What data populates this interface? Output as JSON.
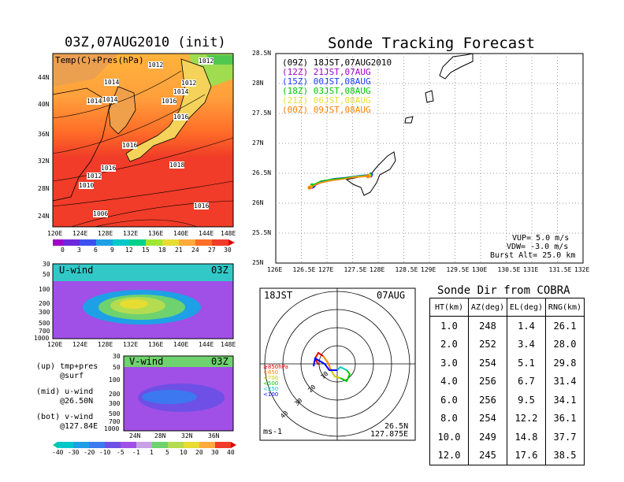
{
  "map_panel": {
    "title": "03Z,07AUG2010 (init)",
    "subtitle": "Temp(C)+Pres(hPa)",
    "lat_labels": [
      "44N",
      "40N",
      "36N",
      "32N",
      "28N",
      "24N"
    ],
    "lon_labels": [
      "120E",
      "124E",
      "128E",
      "132E",
      "136E",
      "140E",
      "144E",
      "148E"
    ],
    "isobar_labels": [
      "1012",
      "1012",
      "1014",
      "1014",
      "1012",
      "1014",
      "1014",
      "1016",
      "1016",
      "1016",
      "1016",
      "1018",
      "1012",
      "1010",
      "1006",
      "1016"
    ],
    "colorbar_labels": [
      "0",
      "3",
      "6",
      "9",
      "12",
      "15",
      "18",
      "21",
      "24",
      "27",
      "30"
    ]
  },
  "uwind_panel": {
    "label": "U-wind",
    "time": "03Z",
    "pres_labels": [
      "30",
      "50",
      "100",
      "200",
      "300",
      "500",
      "700",
      "1000"
    ],
    "lon_labels": [
      "120E",
      "124E",
      "128E",
      "132E",
      "136E",
      "140E",
      "144E",
      "148E"
    ]
  },
  "vwind_panel": {
    "label": "V-wind",
    "time": "03Z",
    "pres_labels": [
      "30",
      "50",
      "100",
      "200",
      "300",
      "500",
      "700",
      "1000"
    ],
    "lat_labels": [
      "24N",
      "28N",
      "32N",
      "36N"
    ]
  },
  "legend_text": {
    "up": "(up) tmp+pres",
    "up2": "@surf",
    "mid": "(mid) u-wind",
    "mid2": "@26.50N",
    "bot": "(bot) v-wind",
    "bot2": "@127.84E"
  },
  "wind_colorbar_labels": [
    "-40",
    "-30",
    "-20",
    "-10",
    "-5",
    "-1",
    "1",
    "5",
    "10",
    "20",
    "30",
    "40"
  ],
  "track_panel": {
    "title": "Sonde Tracking Forecast",
    "legend": [
      {
        "code": "(09Z)",
        "time": "18JST,07AUG2010",
        "color": "#000000"
      },
      {
        "code": "(12Z)",
        "time": "21JST,07AUG",
        "color": "#a000c8"
      },
      {
        "code": "(15Z)",
        "time": "00JST,08AUG",
        "color": "#1e3cff"
      },
      {
        "code": "(18Z)",
        "time": "03JST,08AUG",
        "color": "#00c800"
      },
      {
        "code": "(21Z)",
        "time": "06JST,08AUG",
        "color": "#e6dc32"
      },
      {
        "code": "(00Z)",
        "time": "09JST,08AUG",
        "color": "#ff8200"
      }
    ],
    "params": [
      "VUP= 5.0 m/s",
      "VDW= -3.0 m/s",
      "Burst Alt= 25.0 km"
    ]
  },
  "hodo_panel": {
    "time_label": "18JST",
    "date_label": "07AUG",
    "ring_labels": [
      "10",
      "20",
      "30",
      "40"
    ],
    "unit": "ms-1",
    "loc_lat": "26.5N",
    "loc_lon": "127.875E",
    "pres_legend": [
      {
        "text": "≥850hPa",
        "color": "#e60000"
      },
      {
        "text": "<850",
        "color": "#ff8200"
      },
      {
        "text": "<700",
        "color": "#c8c800"
      },
      {
        "text": "<500",
        "color": "#00c800"
      },
      {
        "text": "<250",
        "color": "#00c8c8"
      },
      {
        "text": "<100",
        "color": "#0000ff"
      }
    ]
  },
  "dir_table": {
    "title": "Sonde Dir from COBRA",
    "headers": [
      "HT(km)",
      "AZ(deg)",
      "EL(deg)",
      "RNG(km)"
    ],
    "rows": [
      [
        "1.0",
        "248",
        "1.4",
        "26.1"
      ],
      [
        "2.0",
        "252",
        "3.4",
        "28.0"
      ],
      [
        "3.0",
        "254",
        "5.1",
        "29.8"
      ],
      [
        "4.0",
        "256",
        "6.7",
        "31.4"
      ],
      [
        "6.0",
        "256",
        "9.5",
        "34.1"
      ],
      [
        "8.0",
        "254",
        "12.2",
        "36.1"
      ],
      [
        "10.0",
        "249",
        "14.8",
        "37.7"
      ],
      [
        "12.0",
        "245",
        "17.6",
        "38.5"
      ]
    ]
  },
  "chart_data": {
    "type": "line",
    "title": "Sonde Tracking Forecast",
    "xlabel": "",
    "ylabel": "",
    "xlim": [
      126,
      132
    ],
    "ylim": [
      25,
      28.5
    ],
    "x_ticks": [
      "126E",
      "126.5E",
      "127E",
      "127.5E",
      "128E",
      "128.5E",
      "129E",
      "129.5E",
      "130E",
      "130.5E",
      "131E",
      "131.5E",
      "132E"
    ],
    "y_ticks": [
      "25N",
      "25.5N",
      "26N",
      "26.5N",
      "27N",
      "27.5N",
      "28N",
      "28.5N"
    ],
    "grid": true,
    "series": [
      {
        "name": "(09Z)",
        "color": "#000000",
        "x": [
          126.72,
          126.9,
          127.1,
          127.35,
          127.6,
          127.85
        ],
        "y": [
          26.28,
          26.36,
          26.4,
          26.42,
          26.45,
          26.47
        ]
      },
      {
        "name": "(12Z)",
        "color": "#a000c8",
        "x": [
          126.7,
          126.9,
          127.1,
          127.35,
          127.6,
          127.85
        ],
        "y": [
          26.27,
          26.35,
          26.39,
          26.41,
          26.44,
          26.46
        ]
      },
      {
        "name": "(15Z)",
        "color": "#1e3cff",
        "x": [
          126.74,
          126.92,
          127.12,
          127.37,
          127.62,
          127.86
        ],
        "y": [
          26.29,
          26.37,
          26.41,
          26.43,
          26.46,
          26.48
        ]
      },
      {
        "name": "(18Z)",
        "color": "#00c800",
        "x": [
          126.71,
          126.88,
          127.08,
          127.33,
          127.58,
          127.84
        ],
        "y": [
          26.3,
          26.37,
          26.4,
          26.42,
          26.45,
          26.47
        ]
      },
      {
        "name": "(21Z)",
        "color": "#e6dc32",
        "x": [
          126.68,
          126.86,
          127.06,
          127.3,
          127.55,
          127.82
        ],
        "y": [
          26.27,
          26.34,
          26.38,
          26.4,
          26.44,
          26.46
        ]
      },
      {
        "name": "(00Z)",
        "color": "#ff8200",
        "x": [
          126.66,
          126.84,
          127.04,
          127.28,
          127.53,
          127.8
        ],
        "y": [
          26.26,
          26.33,
          26.37,
          26.4,
          26.43,
          26.45
        ]
      }
    ]
  }
}
